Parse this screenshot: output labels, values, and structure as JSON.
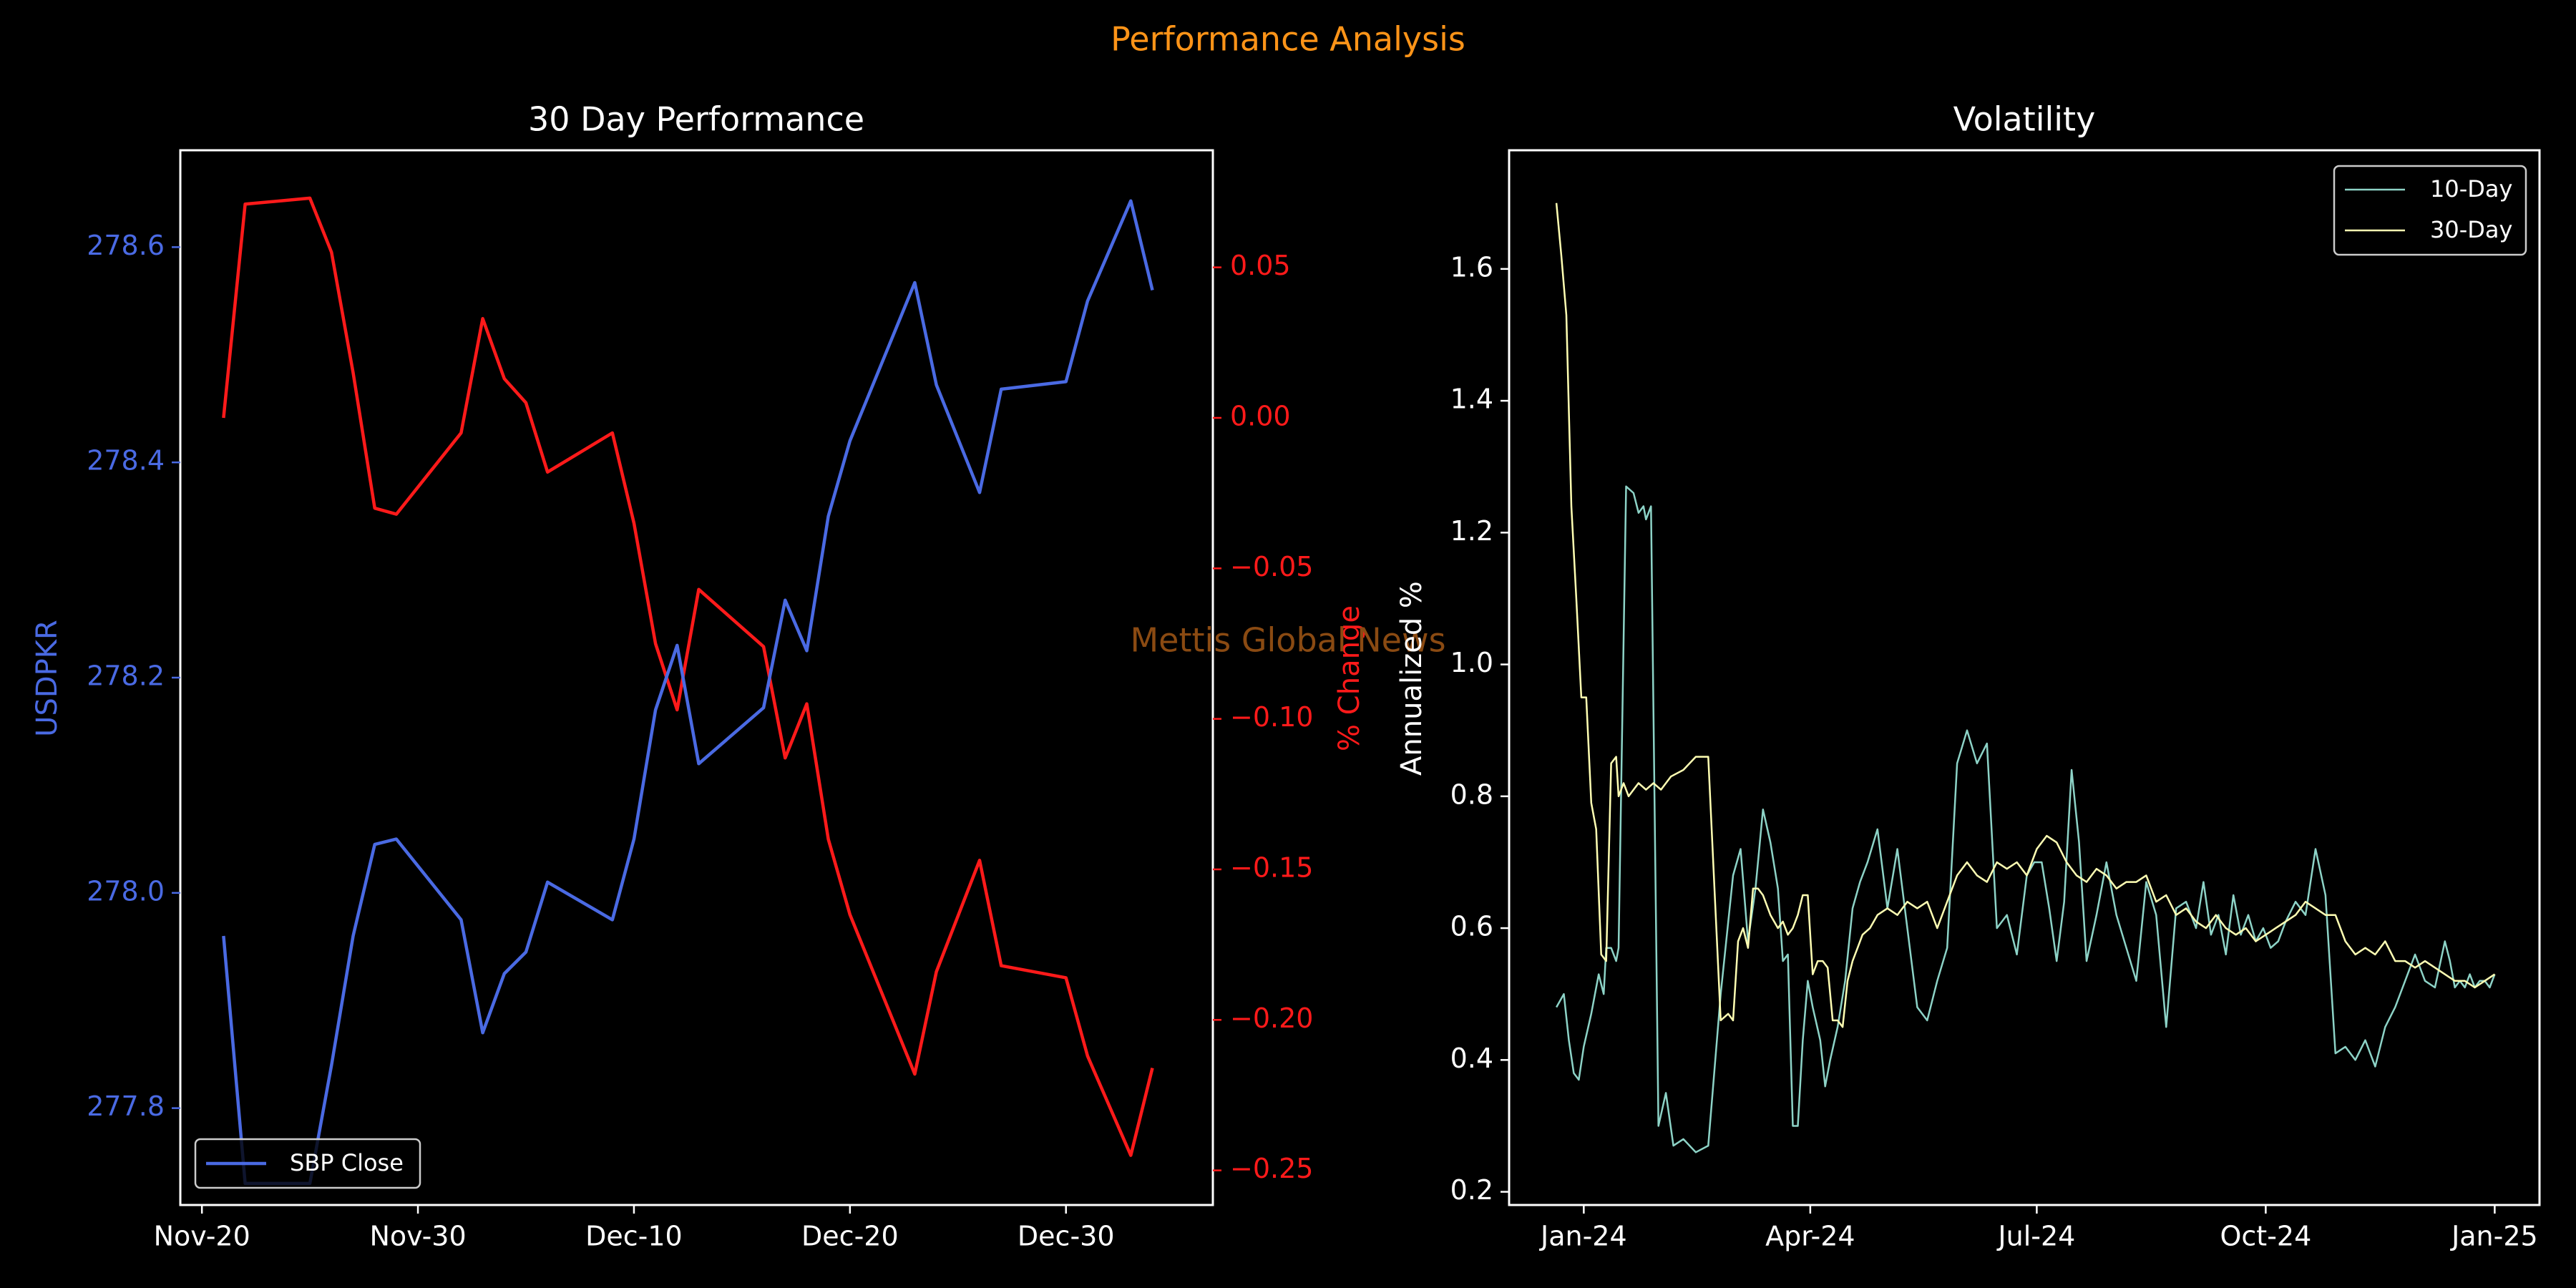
{
  "figure": {
    "suptitle": "Performance Analysis",
    "watermark": "Mettis Global News",
    "colors": {
      "background": "#000000",
      "suptitle": "#ff9418",
      "axes": "#ffffff",
      "price": "#4a6ae3",
      "pct": "#ff1a1a",
      "vol10": "#8dd3c7",
      "vol30": "#ffffb3",
      "watermark": "#8a4a12"
    }
  },
  "chart_data": [
    {
      "type": "line",
      "title": "30 Day Performance",
      "xlabel": "",
      "ylabel": "USDPKR",
      "y2label": "% Change",
      "xticks": [
        "Nov-20",
        "Nov-30",
        "Dec-10",
        "Dec-20",
        "Dec-30"
      ],
      "xtick_days": [
        0,
        10,
        20,
        30,
        40
      ],
      "xlim": [
        -1.0,
        46.8
      ],
      "ylim": [
        277.71,
        278.69
      ],
      "yticks": [
        277.8,
        278.0,
        278.2,
        278.4,
        278.6
      ],
      "y2lim": [
        -0.2615,
        0.0889
      ],
      "y2ticks": [
        0.05,
        0.0,
        -0.05,
        -0.1,
        -0.15,
        -0.2,
        -0.25
      ],
      "y2tick_labels": [
        "0.05",
        "0.00",
        "−0.05",
        "−0.10",
        "−0.15",
        "−0.20",
        "−0.25"
      ],
      "legend": {
        "position": "lower left",
        "entries": [
          "SBP Close"
        ]
      },
      "x_days": [
        1,
        2,
        5,
        6,
        7,
        8,
        9,
        12,
        13,
        14,
        15,
        16,
        19,
        20,
        21,
        22,
        23,
        26,
        27,
        28,
        29,
        30,
        33,
        34,
        36,
        37,
        40,
        41,
        43,
        44
      ],
      "series": [
        {
          "name": "SBP Close",
          "axis": "left",
          "values": [
            277.96,
            277.73,
            277.73,
            277.84,
            277.96,
            278.045,
            278.05,
            277.975,
            277.87,
            277.925,
            277.945,
            278.01,
            277.975,
            278.05,
            278.17,
            278.23,
            278.12,
            278.172,
            278.272,
            278.225,
            278.35,
            278.42,
            278.567,
            278.472,
            278.372,
            278.468,
            278.475,
            278.55,
            278.643,
            278.56
          ]
        },
        {
          "name": "% Change",
          "axis": "right",
          "values": [
            0.0,
            0.071,
            0.073,
            0.055,
            0.015,
            -0.03,
            -0.032,
            -0.005,
            0.033,
            0.013,
            0.005,
            -0.018,
            -0.005,
            -0.035,
            -0.075,
            -0.097,
            -0.057,
            -0.076,
            -0.113,
            -0.095,
            -0.14,
            -0.165,
            -0.218,
            -0.184,
            -0.147,
            -0.182,
            -0.186,
            -0.212,
            -0.245,
            -0.216
          ]
        }
      ]
    },
    {
      "type": "line",
      "title": "Volatility",
      "xlabel": "",
      "ylabel": "Annualized %",
      "xticks": [
        "Jan-24",
        "Apr-24",
        "Jul-24",
        "Oct-24",
        "Jan-25"
      ],
      "xtick_days": [
        0,
        91,
        182,
        274,
        366
      ],
      "xlim": [
        -30,
        384
      ],
      "ylim": [
        0.18,
        1.78
      ],
      "yticks": [
        0.2,
        0.4,
        0.6,
        0.8,
        1.0,
        1.2,
        1.4,
        1.6
      ],
      "legend": {
        "position": "upper right",
        "entries": [
          "10-Day",
          "30-Day"
        ]
      },
      "series": [
        {
          "name": "10-Day",
          "x": [
            -11,
            -8,
            -6,
            -4,
            -2,
            0,
            3,
            6,
            8,
            9,
            11,
            13,
            14,
            17,
            20,
            22,
            24,
            25,
            27,
            30,
            33,
            36,
            40,
            45,
            50,
            55,
            60,
            63,
            66,
            69,
            72,
            75,
            78,
            80,
            82,
            84,
            86,
            88,
            90,
            92,
            95,
            97,
            99,
            102,
            105,
            108,
            111,
            114,
            118,
            122,
            126,
            130,
            134,
            138,
            142,
            146,
            150,
            154,
            158,
            162,
            166,
            170,
            174,
            178,
            181,
            184,
            187,
            190,
            193,
            196,
            199,
            202,
            206,
            210,
            214,
            218,
            222,
            226,
            230,
            234,
            238,
            242,
            246,
            249,
            252,
            255,
            258,
            261,
            264,
            267,
            270,
            273,
            276,
            279,
            282,
            286,
            290,
            294,
            298,
            302,
            306,
            310,
            314,
            318,
            322,
            326,
            330,
            334,
            338,
            342,
            346,
            348,
            350,
            352,
            354,
            356,
            358,
            360,
            362,
            364,
            366
          ],
          "values": [
            0.48,
            0.5,
            0.43,
            0.38,
            0.37,
            0.42,
            0.47,
            0.53,
            0.5,
            0.57,
            0.57,
            0.55,
            0.57,
            1.27,
            1.26,
            1.23,
            1.24,
            1.22,
            1.24,
            0.3,
            0.35,
            0.27,
            0.28,
            0.26,
            0.27,
            0.5,
            0.68,
            0.72,
            0.58,
            0.66,
            0.78,
            0.73,
            0.66,
            0.55,
            0.56,
            0.3,
            0.3,
            0.43,
            0.52,
            0.48,
            0.43,
            0.36,
            0.4,
            0.45,
            0.52,
            0.63,
            0.67,
            0.7,
            0.75,
            0.63,
            0.72,
            0.6,
            0.48,
            0.46,
            0.52,
            0.57,
            0.85,
            0.9,
            0.85,
            0.88,
            0.6,
            0.62,
            0.56,
            0.68,
            0.7,
            0.7,
            0.63,
            0.55,
            0.64,
            0.84,
            0.73,
            0.55,
            0.62,
            0.7,
            0.62,
            0.57,
            0.52,
            0.67,
            0.62,
            0.45,
            0.63,
            0.64,
            0.6,
            0.67,
            0.59,
            0.62,
            0.56,
            0.65,
            0.59,
            0.62,
            0.58,
            0.6,
            0.57,
            0.58,
            0.61,
            0.64,
            0.62,
            0.72,
            0.65,
            0.41,
            0.42,
            0.4,
            0.43,
            0.39,
            0.45,
            0.48,
            0.52,
            0.56,
            0.52,
            0.51,
            0.58,
            0.55,
            0.51,
            0.52,
            0.51,
            0.53,
            0.51,
            0.52,
            0.52,
            0.51,
            0.53
          ],
          "x_note": "days since Jan-24"
        },
        {
          "name": "30-Day",
          "x": [
            -11,
            -9,
            -7,
            -5,
            -3,
            -1,
            1,
            3,
            5,
            7,
            9,
            11,
            13,
            14,
            16,
            18,
            20,
            22,
            25,
            28,
            31,
            35,
            40,
            45,
            50,
            55,
            58,
            60,
            62,
            64,
            66,
            68,
            70,
            72,
            75,
            78,
            80,
            82,
            84,
            86,
            88,
            90,
            92,
            94,
            96,
            98,
            100,
            102,
            104,
            106,
            108,
            110,
            112,
            115,
            118,
            122,
            126,
            130,
            134,
            138,
            142,
            146,
            150,
            154,
            158,
            162,
            166,
            170,
            174,
            178,
            182,
            186,
            190,
            194,
            198,
            202,
            206,
            210,
            214,
            218,
            222,
            226,
            230,
            234,
            238,
            242,
            246,
            250,
            254,
            258,
            262,
            266,
            270,
            274,
            278,
            282,
            286,
            290,
            294,
            298,
            302,
            306,
            310,
            314,
            318,
            322,
            326,
            330,
            334,
            338,
            342,
            346,
            350,
            354,
            358,
            362,
            366
          ],
          "values": [
            1.7,
            1.62,
            1.53,
            1.24,
            1.1,
            0.95,
            0.95,
            0.79,
            0.75,
            0.56,
            0.55,
            0.85,
            0.86,
            0.8,
            0.82,
            0.8,
            0.81,
            0.82,
            0.81,
            0.82,
            0.81,
            0.83,
            0.84,
            0.86,
            0.86,
            0.46,
            0.47,
            0.46,
            0.58,
            0.6,
            0.57,
            0.66,
            0.66,
            0.65,
            0.62,
            0.6,
            0.61,
            0.59,
            0.6,
            0.62,
            0.65,
            0.65,
            0.53,
            0.55,
            0.55,
            0.54,
            0.46,
            0.46,
            0.45,
            0.52,
            0.55,
            0.57,
            0.59,
            0.6,
            0.62,
            0.63,
            0.62,
            0.64,
            0.63,
            0.64,
            0.6,
            0.64,
            0.68,
            0.7,
            0.68,
            0.67,
            0.7,
            0.69,
            0.7,
            0.68,
            0.72,
            0.74,
            0.73,
            0.7,
            0.68,
            0.67,
            0.69,
            0.68,
            0.66,
            0.67,
            0.67,
            0.68,
            0.64,
            0.65,
            0.62,
            0.63,
            0.61,
            0.6,
            0.62,
            0.6,
            0.59,
            0.6,
            0.58,
            0.59,
            0.6,
            0.61,
            0.62,
            0.64,
            0.63,
            0.62,
            0.62,
            0.58,
            0.56,
            0.57,
            0.56,
            0.58,
            0.55,
            0.55,
            0.54,
            0.55,
            0.54,
            0.53,
            0.52,
            0.52,
            0.51,
            0.52,
            0.53
          ]
        }
      ]
    }
  ]
}
